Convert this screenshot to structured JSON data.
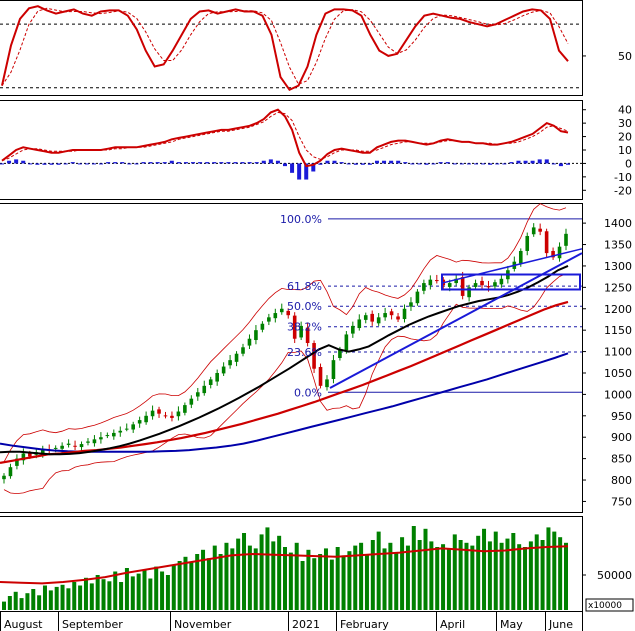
{
  "chart_data": [
    {
      "panel": "oscillator",
      "type": "line",
      "yticks": [
        {
          "value": 50,
          "label": "50"
        }
      ],
      "guide_levels": [
        80,
        20
      ],
      "ylim": [
        15,
        100
      ],
      "colors": {
        "line": "#cc0000",
        "signal": "#cc0000",
        "guide": "#000000"
      },
      "series": [
        {
          "values": [
            22,
            60,
            85,
            95,
            97,
            93,
            90,
            92,
            94,
            90,
            88,
            92,
            93,
            93,
            88,
            75,
            55,
            40,
            42,
            55,
            70,
            85,
            92,
            93,
            90,
            92,
            94,
            92,
            92,
            88,
            70,
            30,
            18,
            22,
            40,
            70,
            90,
            94,
            94,
            93,
            88,
            70,
            55,
            50,
            52,
            65,
            78,
            88,
            90,
            88,
            86,
            85,
            82,
            80,
            78,
            80,
            84,
            88,
            92,
            94,
            93,
            85,
            55,
            45
          ]
        }
      ]
    },
    {
      "panel": "macd",
      "type": "line",
      "yticks": [
        {
          "value": 40,
          "label": "40"
        },
        {
          "value": 30,
          "label": "30"
        },
        {
          "value": 20,
          "label": "20"
        },
        {
          "value": 10,
          "label": "10"
        },
        {
          "value": 0,
          "label": "0"
        },
        {
          "value": -10,
          "label": "-10"
        },
        {
          "value": -20,
          "label": "-20"
        }
      ],
      "ylim": [
        -25,
        45
      ],
      "colors": {
        "macd": "#cc0000",
        "signal": "#cc0000",
        "histogram": "#1a1ad8"
      },
      "series": [
        {
          "values": [
            2,
            6,
            10,
            12,
            11,
            10,
            9,
            8,
            8,
            9,
            10,
            10,
            10,
            10,
            10,
            11,
            12,
            12,
            12,
            12,
            13,
            14,
            15,
            16,
            18,
            19,
            20,
            21,
            22,
            23,
            24,
            25,
            25,
            26,
            27,
            28,
            30,
            33,
            38,
            40,
            35,
            25,
            8,
            -2,
            -1,
            2,
            7,
            10,
            11,
            10,
            9,
            8,
            8,
            12,
            14,
            16,
            17,
            17,
            16,
            15,
            14,
            15,
            17,
            18,
            17,
            16,
            16,
            15,
            15,
            14,
            14,
            15,
            16,
            18,
            20,
            22,
            26,
            30,
            28,
            24,
            23
          ]
        },
        {
          "values": [
            2,
            4,
            7,
            10,
            11,
            11,
            10,
            9,
            9,
            9,
            9,
            10,
            10,
            10,
            10,
            10,
            11,
            11,
            12,
            12,
            12,
            13,
            14,
            15,
            16,
            18,
            19,
            20,
            21,
            22,
            23,
            24,
            24,
            25,
            26,
            27,
            29,
            31,
            35,
            38,
            37,
            32,
            20,
            10,
            5,
            3,
            5,
            8,
            10,
            10,
            10,
            9,
            9,
            10,
            12,
            14,
            15,
            16,
            16,
            15,
            15,
            15,
            16,
            17,
            17,
            16,
            16,
            15,
            15,
            15,
            14,
            15,
            15,
            16,
            18,
            20,
            23,
            27,
            28,
            26,
            24
          ]
        }
      ],
      "histogram": [
        0,
        2,
        3,
        2,
        0,
        -1,
        -1,
        -1,
        -1,
        0,
        1,
        0,
        0,
        0,
        0,
        1,
        1,
        1,
        0,
        0,
        1,
        1,
        1,
        1,
        2,
        1,
        1,
        1,
        1,
        1,
        1,
        1,
        1,
        1,
        1,
        1,
        1,
        2,
        3,
        2,
        -2,
        -7,
        -12,
        -12,
        -6,
        -1,
        2,
        2,
        1,
        0,
        -1,
        -1,
        -1,
        2,
        2,
        2,
        2,
        1,
        0,
        0,
        -1,
        0,
        1,
        1,
        0,
        0,
        0,
        0,
        0,
        -1,
        0,
        0,
        1,
        2,
        2,
        2,
        3,
        3,
        0,
        -2,
        -1
      ]
    },
    {
      "panel": "price",
      "type": "candlestick",
      "yticks": [
        {
          "value": 1400,
          "label": "1400"
        },
        {
          "value": 1350,
          "label": "1350"
        },
        {
          "value": 1300,
          "label": "1300"
        },
        {
          "value": 1250,
          "label": "1250"
        },
        {
          "value": 1200,
          "label": "1200"
        },
        {
          "value": 1150,
          "label": "1150"
        },
        {
          "value": 1100,
          "label": "1100"
        },
        {
          "value": 1050,
          "label": "1050"
        },
        {
          "value": 1000,
          "label": "1000"
        },
        {
          "value": 950,
          "label": "950"
        },
        {
          "value": 900,
          "label": "900"
        },
        {
          "value": 850,
          "label": "850"
        },
        {
          "value": 800,
          "label": "800"
        },
        {
          "value": 750,
          "label": "750"
        }
      ],
      "ylim": [
        730,
        1440
      ],
      "fibonacci": [
        {
          "label": "100.0%",
          "value": 1410
        },
        {
          "label": "61.8%",
          "value": 1253
        },
        {
          "label": "50.0%",
          "value": 1206
        },
        {
          "label": "38.2%",
          "value": 1158
        },
        {
          "label": "23.6%",
          "value": 1099
        },
        {
          "label": "0.0%",
          "value": 1005
        }
      ],
      "colors": {
        "up": "#008000",
        "down": "#cc0000",
        "ma_short": "#000000",
        "ma_mid": "#cc0000",
        "ma_long": "#0000aa",
        "bands": "#cc0000",
        "trend": "#1a1ad8",
        "fib": "#1a1aa8"
      },
      "close": [
        810,
        830,
        850,
        862,
        855,
        865,
        870,
        868,
        875,
        880,
        885,
        878,
        884,
        890,
        895,
        900,
        905,
        910,
        915,
        920,
        930,
        940,
        950,
        962,
        955,
        950,
        945,
        960,
        975,
        990,
        1005,
        1020,
        1035,
        1050,
        1065,
        1080,
        1095,
        1110,
        1130,
        1150,
        1165,
        1180,
        1190,
        1200,
        1185,
        1130,
        1160,
        1120,
        1060,
        1020,
        1035,
        1080,
        1105,
        1140,
        1160,
        1175,
        1185,
        1170,
        1180,
        1190,
        1185,
        1175,
        1200,
        1215,
        1240,
        1260,
        1268,
        1265,
        1255,
        1260,
        1270,
        1230,
        1250,
        1260,
        1255,
        1250,
        1262,
        1270,
        1290,
        1310,
        1335,
        1370,
        1390,
        1380,
        1330,
        1320,
        1345,
        1375
      ],
      "ma_short": [
        865,
        866,
        866,
        864,
        862,
        860,
        860,
        861,
        863,
        866,
        870,
        874,
        879,
        885,
        892,
        900,
        908,
        917,
        926,
        936,
        946,
        957,
        968,
        980,
        992,
        1005,
        1018,
        1032,
        1046,
        1060,
        1075,
        1090,
        1105,
        1115,
        1105,
        1100,
        1105,
        1112,
        1125,
        1138,
        1150,
        1162,
        1172,
        1182,
        1190,
        1198,
        1206,
        1212,
        1218,
        1222,
        1226,
        1232,
        1240,
        1250,
        1262,
        1275,
        1290,
        1300
      ],
      "ma_mid": [
        840,
        845,
        850,
        855,
        860,
        862,
        865,
        868,
        870,
        873,
        876,
        880,
        884,
        888,
        893,
        898,
        904,
        910,
        917,
        924,
        931,
        939,
        947,
        955,
        964,
        973,
        982,
        992,
        1002,
        1012,
        1022,
        1033,
        1044,
        1055,
        1066,
        1078,
        1090,
        1102,
        1114,
        1126,
        1138,
        1150,
        1162,
        1174,
        1186,
        1198,
        1208,
        1216
      ],
      "ma_long": [
        885,
        880,
        876,
        872,
        869,
        867,
        866,
        866,
        866,
        866,
        866,
        866,
        867,
        868,
        870,
        873,
        876,
        880,
        885,
        892,
        900,
        908,
        916,
        924,
        932,
        940,
        948,
        956,
        964,
        972,
        981,
        990,
        999,
        1008,
        1017,
        1026,
        1035,
        1045,
        1055,
        1065,
        1075,
        1085,
        1096
      ],
      "trend_lines": [
        {
          "from": 1015,
          "to": 1330
        },
        {
          "from": 1010,
          "to": 1300
        }
      ],
      "box": {
        "low": 1245,
        "high": 1280
      }
    },
    {
      "panel": "volume",
      "type": "bar",
      "yticks": [
        {
          "value": 50000,
          "label": "50000"
        }
      ],
      "multiplier_label": "x10000",
      "ylim": [
        0,
        130000
      ],
      "colors": {
        "bars": "#008000",
        "ma": "#cc0000"
      },
      "values": [
        12000,
        20000,
        26000,
        17000,
        24000,
        30000,
        21000,
        35000,
        28000,
        33000,
        36000,
        31000,
        40000,
        35000,
        46000,
        38000,
        50000,
        44000,
        41000,
        55000,
        40000,
        60000,
        48000,
        52000,
        58000,
        45000,
        62000,
        55000,
        50000,
        64000,
        70000,
        76000,
        68000,
        80000,
        86000,
        74000,
        92000,
        80000,
        96000,
        88000,
        102000,
        110000,
        92000,
        88000,
        108000,
        118000,
        98000,
        106000,
        90000,
        82000,
        96000,
        70000,
        86000,
        74000,
        80000,
        88000,
        72000,
        90000,
        78000,
        84000,
        92000,
        96000,
        80000,
        100000,
        112000,
        88000,
        96000,
        82000,
        104000,
        92000,
        120000,
        100000,
        116000,
        98000,
        90000,
        94000,
        88000,
        108000,
        100000,
        96000,
        92000,
        106000,
        116000,
        98000,
        112000,
        96000,
        102000,
        110000,
        94000,
        90000,
        98000,
        108000,
        100000,
        118000,
        112000,
        104000,
        96000
      ],
      "ma": [
        40000,
        39000,
        38000,
        40000,
        43000,
        47000,
        53000,
        58000,
        63000,
        68000,
        73000,
        78000,
        80000,
        79000,
        78000,
        77000,
        76000,
        78000,
        80000,
        82000,
        85000,
        88000,
        86000,
        84000,
        85000,
        88000,
        90000,
        91000
      ]
    }
  ],
  "xaxis": {
    "months": [
      "August",
      "September",
      "November",
      "2021",
      "February",
      "April",
      "May",
      "June"
    ]
  }
}
